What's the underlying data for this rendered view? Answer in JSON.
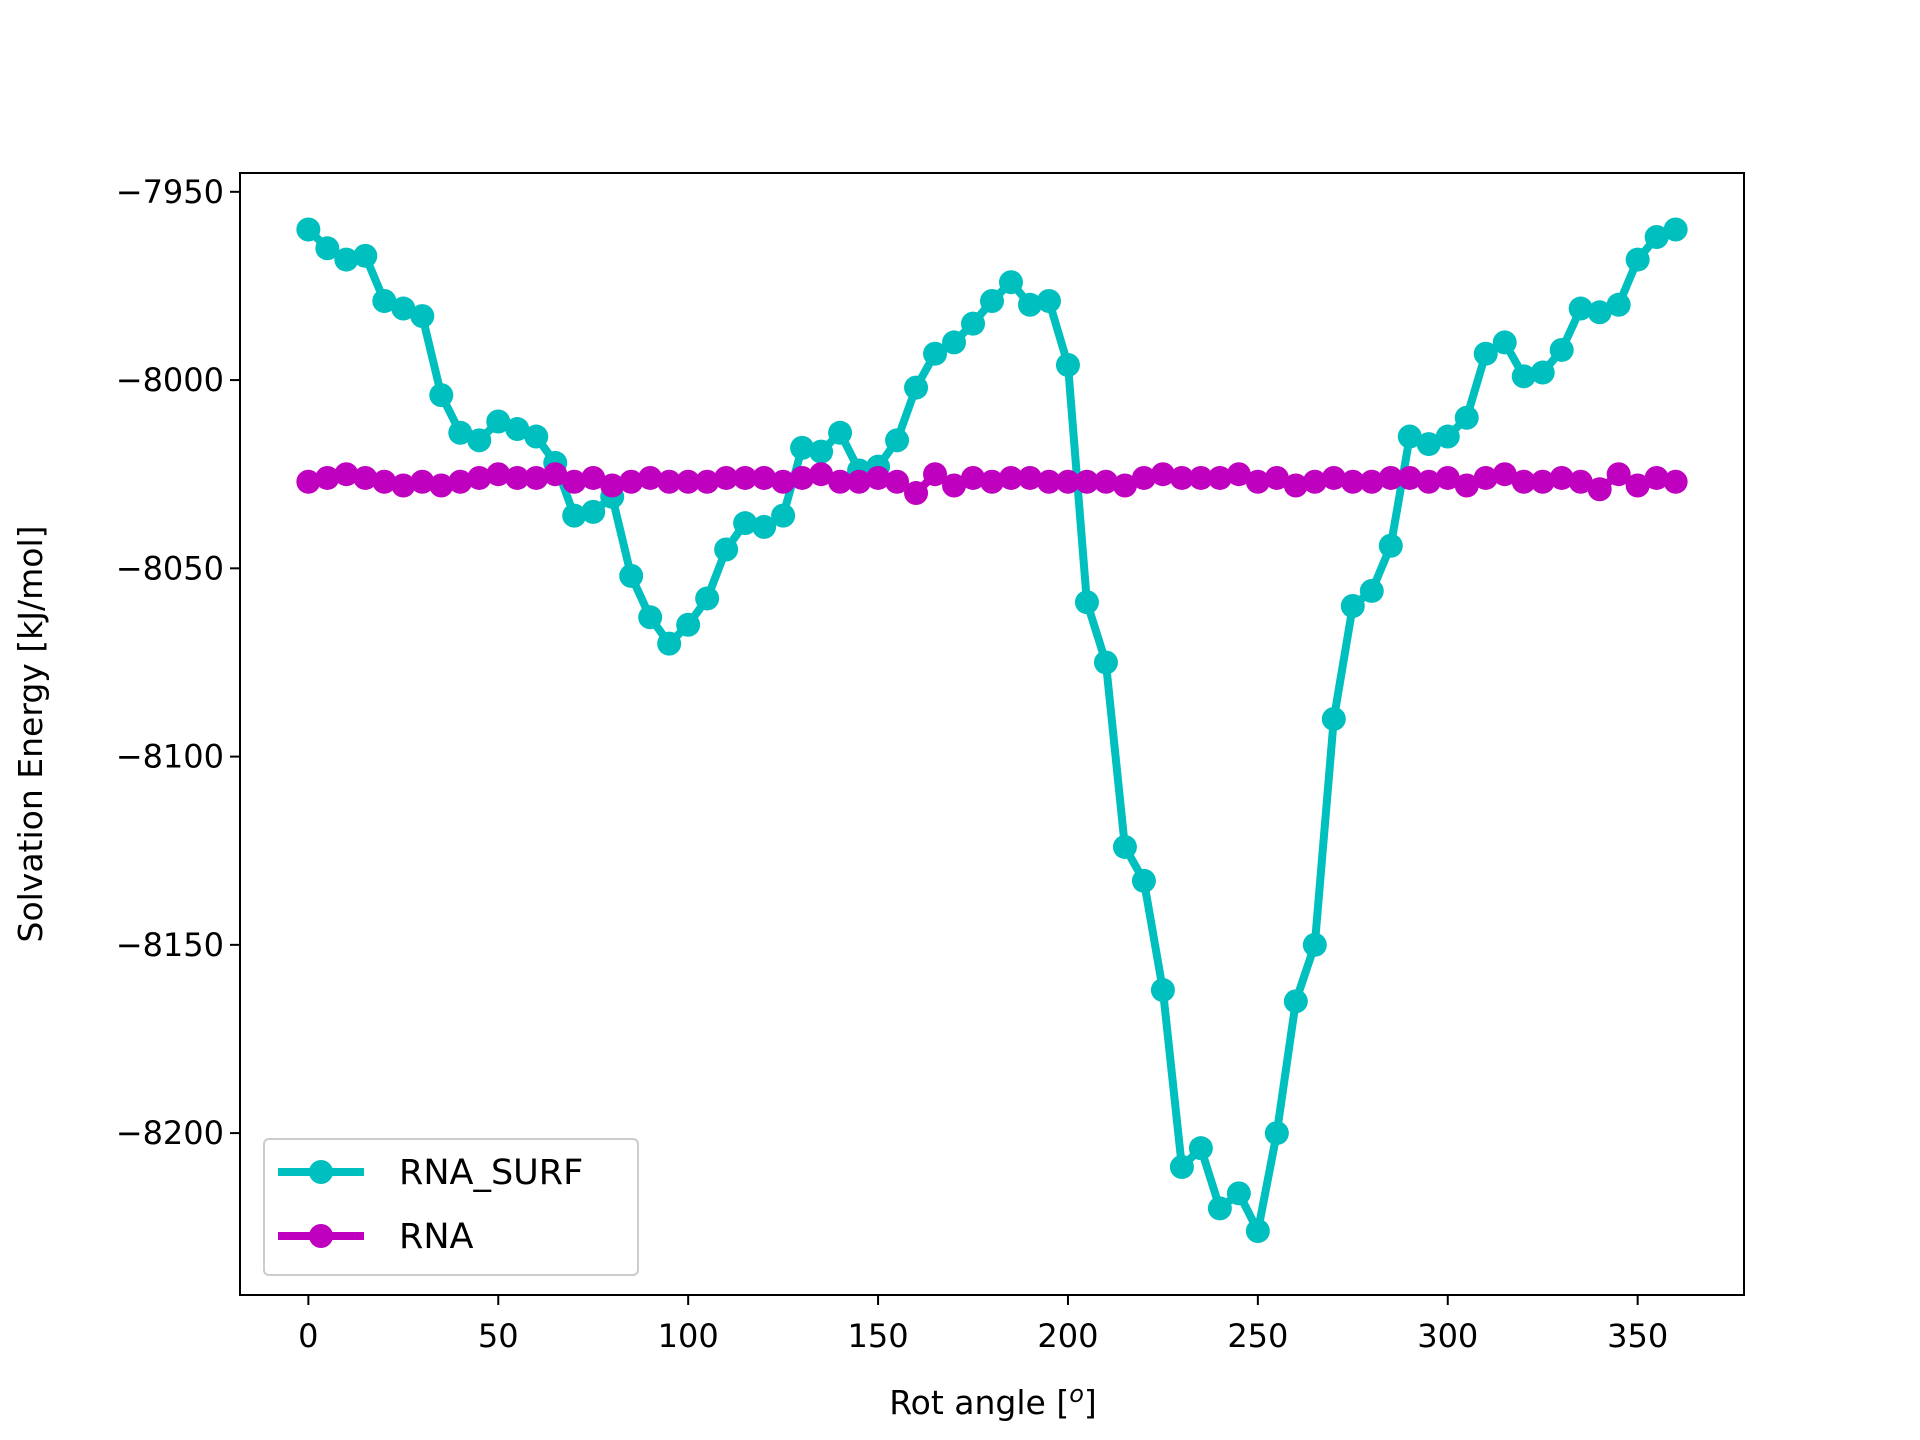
{
  "chart_data": {
    "type": "line",
    "title": "",
    "xlabel_main": "Rot angle [",
    "xlabel_sup": "o",
    "xlabel_close": "]",
    "ylabel": "Solvation Energy [kJ/mol]",
    "xlim": [
      -18,
      378
    ],
    "ylim": [
      -8243,
      -7945
    ],
    "xticks": [
      0,
      50,
      100,
      150,
      200,
      250,
      300,
      350
    ],
    "xtick_labels": [
      "0",
      "50",
      "100",
      "150",
      "200",
      "250",
      "300",
      "350"
    ],
    "yticks": [
      -7950,
      -8000,
      -8050,
      -8100,
      -8150,
      -8200
    ],
    "ytick_labels": [
      "−7950",
      "−8000",
      "−8050",
      "−8100",
      "−8150",
      "−8200"
    ],
    "grid": false,
    "legend_position": "lower-left",
    "x": [
      0,
      5,
      10,
      15,
      20,
      25,
      30,
      35,
      40,
      45,
      50,
      55,
      60,
      65,
      70,
      75,
      80,
      85,
      90,
      95,
      100,
      105,
      110,
      115,
      120,
      125,
      130,
      135,
      140,
      145,
      150,
      155,
      160,
      165,
      170,
      175,
      180,
      185,
      190,
      195,
      200,
      205,
      210,
      215,
      220,
      225,
      230,
      235,
      240,
      245,
      250,
      255,
      260,
      265,
      270,
      275,
      280,
      285,
      290,
      295,
      300,
      305,
      310,
      315,
      320,
      325,
      330,
      335,
      340,
      345,
      350,
      355,
      360
    ],
    "series": [
      {
        "name": "RNA_SURF",
        "color": "#00BFBF",
        "values": [
          -7960,
          -7965,
          -7968,
          -7967,
          -7979,
          -7981,
          -7983,
          -8004,
          -8014,
          -8016,
          -8011,
          -8013,
          -8015,
          -8022,
          -8036,
          -8035,
          -8031,
          -8052,
          -8063,
          -8070,
          -8065,
          -8058,
          -8045,
          -8038,
          -8039,
          -8036,
          -8018,
          -8019,
          -8014,
          -8024,
          -8023,
          -8016,
          -8002,
          -7993,
          -7990,
          -7985,
          -7979,
          -7974,
          -7980,
          -7979,
          -7996,
          -8059,
          -8075,
          -8124,
          -8133,
          -8162,
          -8209,
          -8204,
          -8220,
          -8216,
          -8226,
          -8200,
          -8165,
          -8150,
          -8090,
          -8060,
          -8056,
          -8044,
          -8015,
          -8017,
          -8015,
          -8010,
          -7993,
          -7990,
          -7999,
          -7998,
          -7992,
          -7981,
          -7982,
          -7980,
          -7968,
          -7962,
          -7960
        ]
      },
      {
        "name": "RNA",
        "color": "#BF00BF",
        "values": [
          -8027,
          -8026,
          -8025,
          -8026,
          -8027,
          -8028,
          -8027,
          -8028,
          -8027,
          -8026,
          -8025,
          -8026,
          -8026,
          -8025,
          -8027,
          -8026,
          -8028,
          -8027,
          -8026,
          -8027,
          -8027,
          -8027,
          -8026,
          -8026,
          -8026,
          -8027,
          -8026,
          -8025,
          -8027,
          -8027,
          -8026,
          -8027,
          -8030,
          -8025,
          -8028,
          -8026,
          -8027,
          -8026,
          -8026,
          -8027,
          -8027,
          -8027,
          -8027,
          -8028,
          -8026,
          -8025,
          -8026,
          -8026,
          -8026,
          -8025,
          -8027,
          -8026,
          -8028,
          -8027,
          -8026,
          -8027,
          -8027,
          -8026,
          -8026,
          -8027,
          -8026,
          -8028,
          -8026,
          -8025,
          -8027,
          -8027,
          -8026,
          -8027,
          -8029,
          -8025,
          -8028,
          -8026,
          -8027
        ]
      }
    ]
  }
}
